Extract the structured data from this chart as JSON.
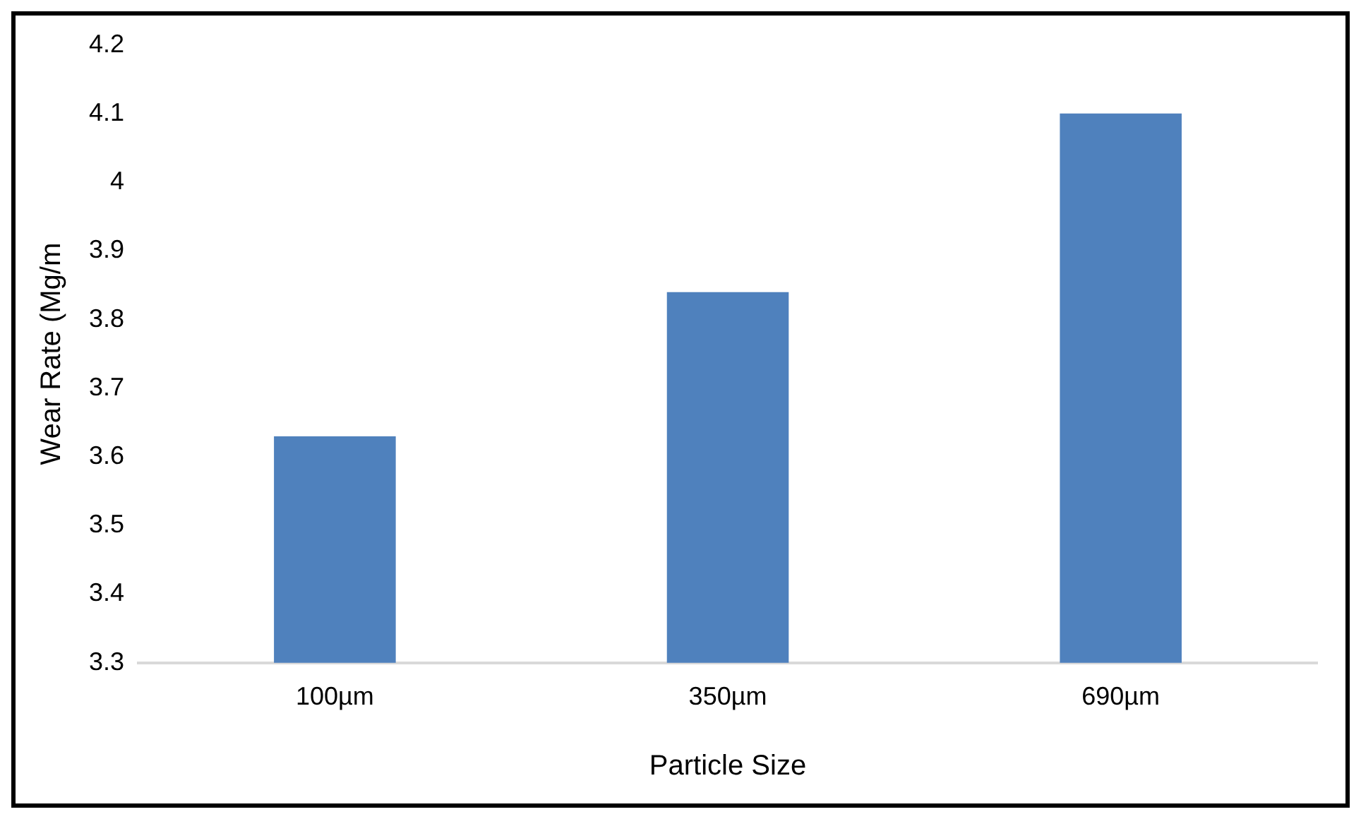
{
  "chart_data": {
    "type": "bar",
    "xlabel": "Particle Size",
    "ylabel": "Wear Rate (Mg/m",
    "categories": [
      "100µm",
      "350µm",
      "690µm"
    ],
    "values": [
      3.63,
      3.84,
      4.1
    ],
    "color": "#4f81bd",
    "ylim": [
      3.3,
      4.2
    ],
    "yticks": [
      3.3,
      3.4,
      3.5,
      3.6,
      3.7,
      3.8,
      3.9,
      4,
      4.1,
      4.2
    ],
    "grid": false,
    "legend": false
  }
}
